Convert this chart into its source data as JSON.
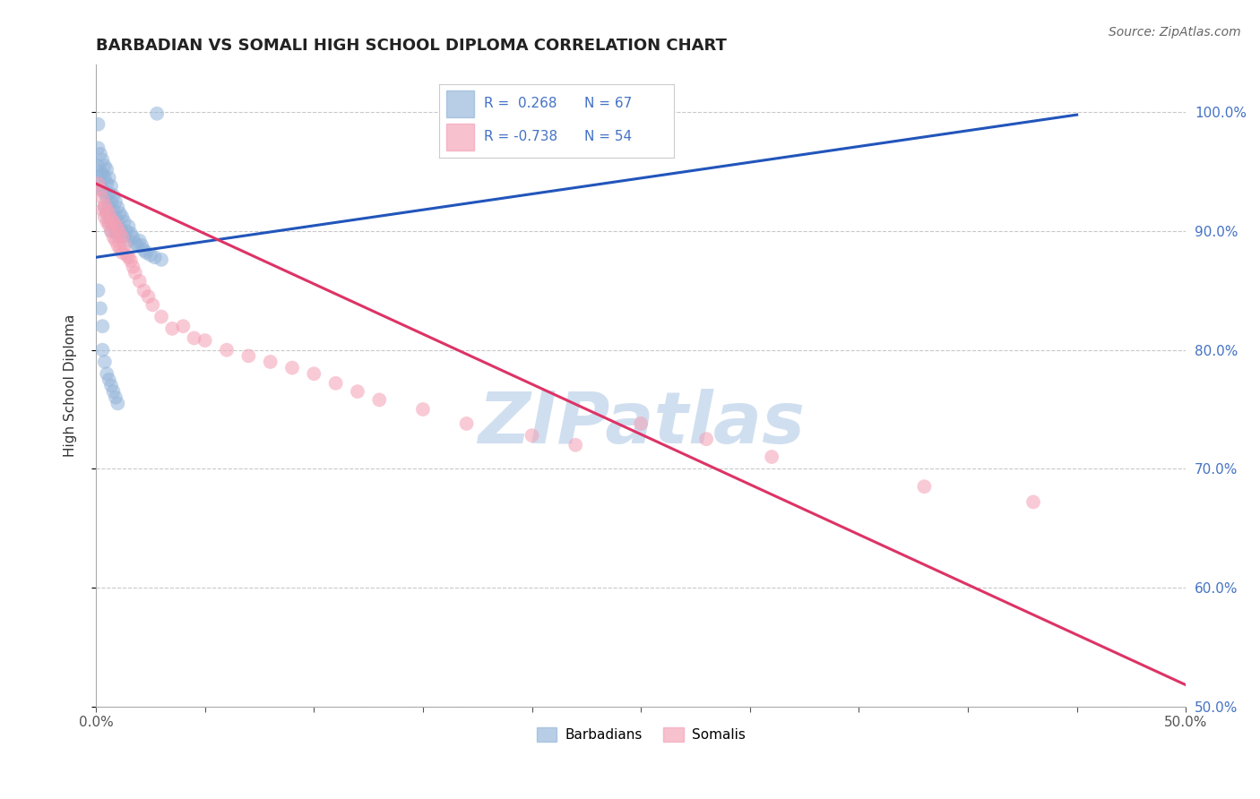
{
  "title": "BARBADIAN VS SOMALI HIGH SCHOOL DIPLOMA CORRELATION CHART",
  "source": "Source: ZipAtlas.com",
  "ylabel": "High School Diploma",
  "xlim": [
    0.0,
    0.5
  ],
  "ylim": [
    0.5,
    1.04
  ],
  "yticks": [
    0.5,
    0.6,
    0.7,
    0.8,
    0.9,
    1.0
  ],
  "ytick_labels_right": [
    "50.0%",
    "60.0%",
    "70.0%",
    "80.0%",
    "90.0%",
    "100.0%"
  ],
  "right_ytick_color": "#4472c4",
  "blue_R": 0.268,
  "blue_N": 67,
  "pink_R": -0.738,
  "pink_N": 54,
  "blue_color": "#92b4d9",
  "pink_color": "#f4a0b5",
  "blue_line_color": "#2255bb",
  "pink_line_color": "#dd3366",
  "background_color": "#ffffff",
  "grid_color": "#bbbbbb",
  "watermark_text": "ZIPatlas",
  "watermark_color": "#d0dff0",
  "blue_line_x0": 0.0,
  "blue_line_y0": 0.878,
  "blue_line_x1": 0.45,
  "blue_line_y1": 0.998,
  "pink_line_x0": 0.0,
  "pink_line_y0": 0.94,
  "pink_line_x1": 0.5,
  "pink_line_y1": 0.518,
  "blue_x": [
    0.001,
    0.001,
    0.001,
    0.001,
    0.002,
    0.002,
    0.002,
    0.003,
    0.003,
    0.003,
    0.004,
    0.004,
    0.004,
    0.004,
    0.005,
    0.005,
    0.005,
    0.005,
    0.006,
    0.006,
    0.006,
    0.006,
    0.007,
    0.007,
    0.007,
    0.007,
    0.008,
    0.008,
    0.008,
    0.009,
    0.009,
    0.009,
    0.01,
    0.01,
    0.01,
    0.011,
    0.011,
    0.012,
    0.012,
    0.013,
    0.013,
    0.014,
    0.015,
    0.015,
    0.016,
    0.017,
    0.018,
    0.019,
    0.02,
    0.021,
    0.022,
    0.023,
    0.025,
    0.027,
    0.03,
    0.001,
    0.002,
    0.003,
    0.003,
    0.004,
    0.005,
    0.006,
    0.007,
    0.008,
    0.009,
    0.01,
    0.028
  ],
  "blue_y": [
    0.99,
    0.97,
    0.955,
    0.945,
    0.965,
    0.95,
    0.938,
    0.96,
    0.948,
    0.935,
    0.955,
    0.945,
    0.932,
    0.92,
    0.952,
    0.94,
    0.928,
    0.915,
    0.945,
    0.932,
    0.92,
    0.908,
    0.938,
    0.925,
    0.912,
    0.9,
    0.93,
    0.918,
    0.906,
    0.925,
    0.912,
    0.9,
    0.92,
    0.908,
    0.896,
    0.915,
    0.902,
    0.912,
    0.9,
    0.908,
    0.896,
    0.9,
    0.904,
    0.892,
    0.898,
    0.895,
    0.89,
    0.888,
    0.892,
    0.888,
    0.884,
    0.882,
    0.88,
    0.878,
    0.876,
    0.85,
    0.835,
    0.82,
    0.8,
    0.79,
    0.78,
    0.775,
    0.77,
    0.765,
    0.76,
    0.755,
    0.999
  ],
  "pink_x": [
    0.001,
    0.002,
    0.003,
    0.003,
    0.004,
    0.004,
    0.005,
    0.005,
    0.006,
    0.006,
    0.007,
    0.007,
    0.008,
    0.008,
    0.009,
    0.009,
    0.01,
    0.01,
    0.011,
    0.011,
    0.012,
    0.012,
    0.013,
    0.014,
    0.015,
    0.016,
    0.017,
    0.018,
    0.02,
    0.022,
    0.024,
    0.026,
    0.03,
    0.035,
    0.04,
    0.045,
    0.05,
    0.06,
    0.07,
    0.08,
    0.09,
    0.1,
    0.11,
    0.12,
    0.13,
    0.15,
    0.17,
    0.2,
    0.22,
    0.25,
    0.28,
    0.31,
    0.38,
    0.43
  ],
  "pink_y": [
    0.94,
    0.935,
    0.928,
    0.918,
    0.922,
    0.912,
    0.918,
    0.908,
    0.915,
    0.905,
    0.91,
    0.9,
    0.908,
    0.895,
    0.905,
    0.892,
    0.902,
    0.888,
    0.898,
    0.885,
    0.895,
    0.882,
    0.888,
    0.88,
    0.878,
    0.875,
    0.87,
    0.865,
    0.858,
    0.85,
    0.845,
    0.838,
    0.828,
    0.818,
    0.82,
    0.81,
    0.808,
    0.8,
    0.795,
    0.79,
    0.785,
    0.78,
    0.772,
    0.765,
    0.758,
    0.75,
    0.738,
    0.728,
    0.72,
    0.738,
    0.725,
    0.71,
    0.685,
    0.672
  ]
}
